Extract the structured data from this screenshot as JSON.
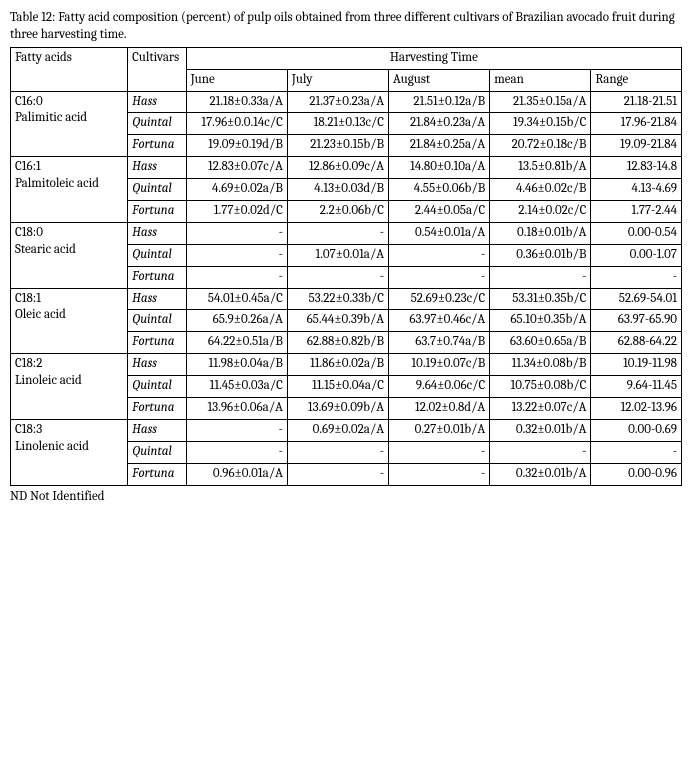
{
  "caption": "Table 12: Fatty acid composition (percent) of pulp oils obtained from three different cultivars of Brazilian avocado fruit during three harvesting time.",
  "headers": {
    "fatty_acids": "Fatty acids",
    "cultivars": "Cultivars",
    "harvesting_time": "Harvesting Time",
    "june": "June",
    "july": "July",
    "august": "August",
    "mean": "mean",
    "range": "Range"
  },
  "acids": [
    {
      "name": "C16:0\nPalimitic acid",
      "rows": [
        {
          "cultivar": "Hass",
          "june": "21.18±0.33a/A",
          "july": "21.37±0.23a/A",
          "august": "21.51±0.12a/B",
          "mean": "21.35±0.15a/A",
          "range": "21.18-21.51"
        },
        {
          "cultivar": "Quintal",
          "june": "17.96±0.0.14c/C",
          "july": "18.21±0.13c/C",
          "august": "21.84±0.23a/A",
          "mean": "19.34±0.15b/C",
          "range": "17.96-21.84"
        },
        {
          "cultivar": "Fortuna",
          "june": "19.09±0.19d/B",
          "july": "21.23±0.15b/B",
          "august": "21.84±0.25a/A",
          "mean": "20.72±0.18c/B",
          "range": "19.09-21.84"
        }
      ]
    },
    {
      "name": "C16:1\nPalmitoleic acid",
      "rows": [
        {
          "cultivar": "Hass",
          "june": "12.83±0.07c/A",
          "july": "12.86±0.09c/A",
          "august": "14.80±0.10a/A",
          "mean": "13.5±0.81b/A",
          "range": "12.83-14.8"
        },
        {
          "cultivar": "Quintal",
          "june": "4.69±0.02a/B",
          "july": "4.13±0.03d/B",
          "august": "4.55±0.06b/B",
          "mean": "4.46±0.02c/B",
          "range": "4.13-4.69"
        },
        {
          "cultivar": "Fortuna",
          "june": "1.77±0.02d/C",
          "july": "2.2±0.06b/C",
          "august": "2.44±0.05a/C",
          "mean": "2.14±0.02c/C",
          "range": "1.77-2.44"
        }
      ]
    },
    {
      "name": "C18:0\nStearic acid",
      "rows": [
        {
          "cultivar": "Hass",
          "june": "-",
          "july": "-",
          "august": "0.54±0.01a/A",
          "mean": "0.18±0.01b/A",
          "range": "0.00-0.54"
        },
        {
          "cultivar": "Quintal",
          "june": "-",
          "july": "1.07±0.01a/A",
          "august": "-",
          "mean": "0.36±0.01b/B",
          "range": "0.00-1.07"
        },
        {
          "cultivar": "Fortuna",
          "june": "-",
          "july": "-",
          "august": "-",
          "mean": "-",
          "range": "-"
        }
      ]
    },
    {
      "name": "C18:1\nOleic acid",
      "rows": [
        {
          "cultivar": "Hass",
          "june": "54.01±0.45a/C",
          "july": "53.22±0.33b/C",
          "august": "52.69±0.23c/C",
          "mean": "53.31±0.35b/C",
          "range": "52.69-54.01"
        },
        {
          "cultivar": "Quintal",
          "june": "65.9±0.26a/A",
          "july": "65.44±0.39b/A",
          "august": "63.97±0.46c/A",
          "mean": "65.10±0.35b/A",
          "range": "63.97-65.90"
        },
        {
          "cultivar": "Fortuna",
          "june": "64.22±0.51a/B",
          "july": "62.88±0.82b/B",
          "august": "63.7±0.74a/B",
          "mean": "63.60±0.65a/B",
          "range": "62.88-64.22"
        }
      ]
    },
    {
      "name": "C18:2\nLinoleic acid",
      "rows": [
        {
          "cultivar": "Hass",
          "june": "11.98±0.04a/B",
          "july": "11.86±0.02a/B",
          "august": "10.19±0.07c/B",
          "mean": "11.34±0.08b/B",
          "range": "10.19-11.98"
        },
        {
          "cultivar": "Quintal",
          "june": "11.45±0.03a/C",
          "july": "11.15±0.04a/C",
          "august": "9.64±0.06c/C",
          "mean": "10.75±0.08b/C",
          "range": "9.64-11.45"
        },
        {
          "cultivar": "Fortuna",
          "june": "13.96±0.06a/A",
          "july": "13.69±0.09b/A",
          "august": "12.02±0.8d/A",
          "mean": "13.22±0.07c/A",
          "range": "12.02-13.96"
        }
      ]
    },
    {
      "name": "C18:3\nLinolenic acid",
      "rows": [
        {
          "cultivar": "Hass",
          "june": "-",
          "july": "0.69±0.02a/A",
          "august": "0.27±0.01b/A",
          "mean": "0.32±0.01b/A",
          "range": "0.00-0.69"
        },
        {
          "cultivar": "Quintal",
          "june": "-",
          "july": "-",
          "august": "-",
          "mean": "-",
          "range": "-"
        },
        {
          "cultivar": "Fortuna",
          "june": "0.96±0.01a/A",
          "july": "-",
          "august": "-",
          "mean": "0.32±0.01b/A",
          "range": "0.00-0.96"
        }
      ]
    }
  ],
  "footnote": "ND Not Identified"
}
